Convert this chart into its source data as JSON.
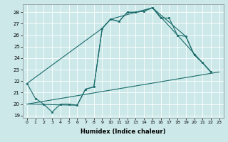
{
  "xlabel": "Humidex (Indice chaleur)",
  "bg_color": "#cce8e8",
  "grid_color": "#ffffff",
  "line_color": "#1a6b6b",
  "xlim": [
    -0.5,
    23.5
  ],
  "ylim": [
    18.8,
    28.7
  ],
  "yticks": [
    19,
    20,
    21,
    22,
    23,
    24,
    25,
    26,
    27,
    28
  ],
  "xticks": [
    0,
    1,
    2,
    3,
    4,
    5,
    6,
    7,
    8,
    9,
    10,
    11,
    12,
    13,
    14,
    15,
    16,
    17,
    18,
    19,
    20,
    21,
    22,
    23
  ],
  "series": [
    {
      "x": [
        0,
        1,
        2,
        3,
        4,
        5,
        6,
        7,
        8,
        9,
        10,
        11,
        12,
        13,
        14,
        15,
        16,
        17,
        18,
        19,
        20,
        21,
        22
      ],
      "y": [
        21.8,
        20.5,
        20.0,
        19.3,
        20.0,
        20.0,
        19.9,
        21.3,
        21.5,
        26.6,
        27.4,
        27.2,
        28.0,
        28.0,
        28.1,
        28.4,
        27.5,
        27.5,
        26.0,
        25.9,
        24.3,
        23.6,
        22.8
      ],
      "marker": true
    },
    {
      "x": [
        0,
        23
      ],
      "y": [
        20.0,
        22.8
      ],
      "marker": false
    },
    {
      "x": [
        0,
        9,
        10,
        15,
        22
      ],
      "y": [
        21.8,
        26.6,
        27.4,
        28.4,
        22.8
      ],
      "marker": false
    },
    {
      "x": [
        0,
        6,
        7,
        8,
        9,
        10,
        11,
        12,
        13,
        14,
        15,
        19,
        20,
        21,
        22
      ],
      "y": [
        20.0,
        19.9,
        21.3,
        21.5,
        26.6,
        27.4,
        27.2,
        28.0,
        28.0,
        28.1,
        28.4,
        25.9,
        24.3,
        23.6,
        22.8
      ],
      "marker": false
    }
  ]
}
